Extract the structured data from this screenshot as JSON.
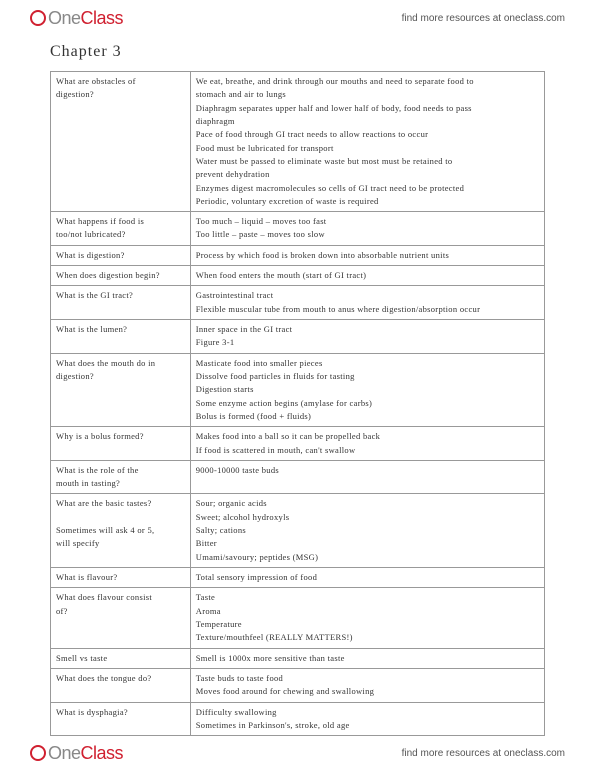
{
  "brand": {
    "one": "One",
    "class": "Class"
  },
  "header_link": "find more resources at oneclass.com",
  "footer_link": "find more resources at oneclass.com",
  "title": "Chapter 3",
  "rows": [
    {
      "q": [
        "What are obstacles of",
        "digestion?"
      ],
      "a": [
        "We eat, breathe, and drink through our mouths and need to separate food to",
        "stomach and air to lungs",
        "Diaphragm separates upper half and lower half of body, food needs to pass",
        "diaphragm",
        "Pace of food through GI tract needs to allow reactions to occur",
        "Food must be lubricated for transport",
        "Water must be passed to eliminate waste but most must be retained to",
        "prevent dehydration",
        "Enzymes digest macromolecules so cells of GI tract need to be protected",
        "Periodic, voluntary excretion of waste is required"
      ]
    },
    {
      "q": [
        "What happens if food is",
        "too/not lubricated?"
      ],
      "a": [
        "Too much – liquid – moves too fast",
        "Too little – paste – moves too slow"
      ]
    },
    {
      "q": [
        "What is digestion?"
      ],
      "a": [
        "Process by which food is broken down into absorbable nutrient units"
      ]
    },
    {
      "q": [
        "When does digestion begin?"
      ],
      "a": [
        "When food enters the mouth (start of GI tract)"
      ]
    },
    {
      "q": [
        "What is the GI tract?"
      ],
      "a": [
        "Gastrointestinal tract",
        "Flexible muscular tube from mouth to anus where digestion/absorption occur"
      ]
    },
    {
      "q": [
        "What is the lumen?"
      ],
      "a": [
        "Inner space in the GI tract",
        "Figure 3-1"
      ]
    },
    {
      "q": [
        "What does the mouth do in",
        "digestion?"
      ],
      "a": [
        "Masticate food into smaller pieces",
        "Dissolve food particles in fluids for tasting",
        "Digestion starts",
        "Some enzyme action begins (amylase for carbs)",
        "Bolus is formed (food + fluids)"
      ]
    },
    {
      "q": [
        "Why is a bolus formed?"
      ],
      "a": [
        "Makes food into a ball so it can be propelled back",
        "If food is scattered in mouth, can't swallow"
      ]
    },
    {
      "q": [
        "What is the role of the",
        "mouth in tasting?"
      ],
      "a": [
        "9000-10000 taste buds"
      ]
    },
    {
      "q": [
        "What are the basic tastes?",
        "",
        "Sometimes will ask 4 or 5,",
        "will specify"
      ],
      "a": [
        "Sour; organic acids",
        "Sweet; alcohol hydroxyls",
        "Salty; cations",
        "Bitter",
        "Umami/savoury; peptides (MSG)"
      ]
    },
    {
      "q": [
        "What is flavour?"
      ],
      "a": [
        "Total sensory impression of food"
      ]
    },
    {
      "q": [
        "What does flavour consist",
        "of?"
      ],
      "a": [
        "Taste",
        "Aroma",
        "Temperature",
        "Texture/mouthfeel (REALLY MATTERS!)"
      ]
    },
    {
      "q": [
        "Smell vs taste"
      ],
      "a": [
        "Smell is 1000x more sensitive than taste"
      ]
    },
    {
      "q": [
        "What does the tongue do?"
      ],
      "a": [
        "Taste buds to taste food",
        "Moves food around for chewing and swallowing"
      ]
    },
    {
      "q": [
        "What is dysphagia?"
      ],
      "a": [
        "Difficulty swallowing",
        "Sometimes in Parkinson's, stroke, old age"
      ]
    }
  ]
}
